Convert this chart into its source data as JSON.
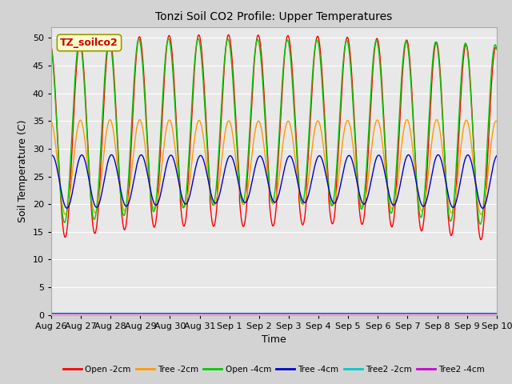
{
  "title": "Tonzi Soil CO2 Profile: Upper Temperatures",
  "xlabel": "Time",
  "ylabel": "Soil Temperature (C)",
  "annotation": "TZ_soilco2",
  "ylim": [
    0,
    52
  ],
  "yticks": [
    0,
    5,
    10,
    15,
    20,
    25,
    30,
    35,
    40,
    45,
    50
  ],
  "fig_bg_color": "#d3d3d3",
  "plot_bg_color": "#e8e8e8",
  "line_colors": {
    "Open -2cm": "#ff0000",
    "Tree -2cm": "#ff9900",
    "Open -4cm": "#00cc00",
    "Tree -4cm": "#0000cc",
    "Tree2 -2cm": "#00cccc",
    "Tree2 -4cm": "#cc00cc"
  },
  "n_days": 15,
  "x_tick_labels": [
    "Aug 26",
    "Aug 27",
    "Aug 28",
    "Aug 29",
    "Aug 30",
    "Aug 31",
    "Sep 1",
    "Sep 2",
    "Sep 3",
    "Sep 4",
    "Sep 5",
    "Sep 6",
    "Sep 7",
    "Sep 8",
    "Sep 9",
    "Sep 10"
  ]
}
